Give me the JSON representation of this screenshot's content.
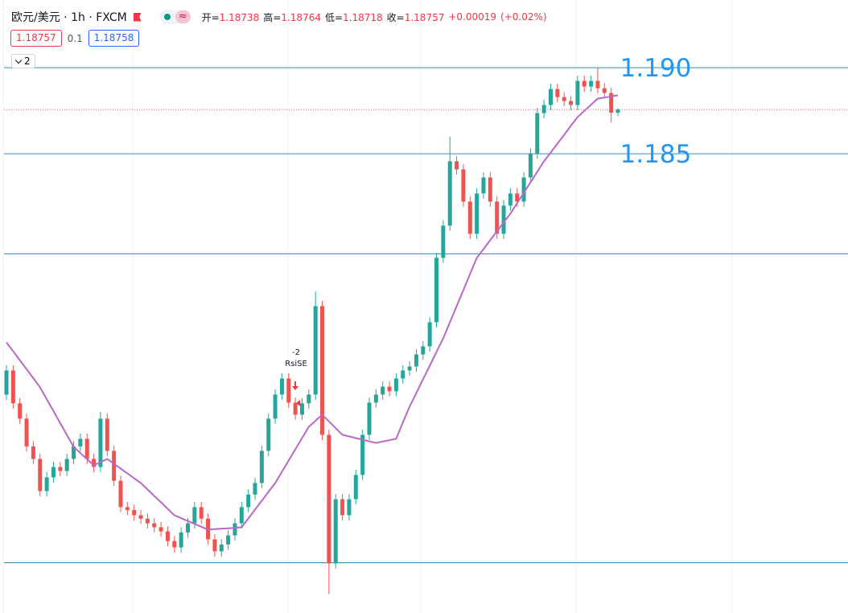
{
  "header": {
    "symbol": "欧元/美元 · 1h · FXCM",
    "badge": "≈",
    "ohlc": [
      {
        "label": "开=",
        "value": 1.18738
      },
      {
        "label": "高=",
        "value": 1.18764
      },
      {
        "label": "低=",
        "value": 1.18718
      },
      {
        "label": "收=",
        "value": 1.18757
      }
    ],
    "change": "+0.00019",
    "change_pct": "(+0.02%)"
  },
  "price_boxes": {
    "bid": 1.18757,
    "spread": 0.1,
    "ask": 1.18758
  },
  "indicator_count": 2,
  "chart_data": {
    "type": "candlestick",
    "up_color": "#26a69a",
    "down_color": "#ef5350",
    "ylim": [
      1.15832,
      1.19393
    ],
    "open": [
      1.171,
      1.17241,
      1.1705,
      1.16961,
      1.168,
      1.16727,
      1.1654,
      1.1662,
      1.1668,
      1.16657,
      1.16727,
      1.168,
      1.16844,
      1.16727,
      1.1668,
      1.16961,
      1.16774,
      1.166,
      1.16447,
      1.1643,
      1.164,
      1.1638,
      1.16353,
      1.1633,
      1.16306,
      1.1625,
      1.16213,
      1.163,
      1.16353,
      1.16447,
      1.1638,
      1.1626,
      1.1619,
      1.1623,
      1.16283,
      1.16353,
      1.16447,
      1.1652,
      1.16587,
      1.16774,
      1.16961,
      1.17101,
      1.17194,
      1.17054,
      1.16984,
      1.1705,
      1.17101,
      1.17615,
      1.16867,
      1.1612,
      1.16493,
      1.164,
      1.16493,
      1.16634,
      1.16867,
      1.17054,
      1.17101,
      1.17147,
      1.1712,
      1.17194,
      1.17241,
      1.17264,
      1.17334,
      1.17381,
      1.17521,
      1.17895,
      1.18082,
      1.18456,
      1.18409,
      1.18222,
      1.18035,
      1.18269,
      1.18362,
      1.18222,
      1.18035,
      1.18199,
      1.18269,
      1.18222,
      1.18362,
      1.18502,
      1.18736,
      1.18783,
      1.18876,
      1.18829,
      1.18806,
      1.18783,
      1.18923,
      1.1889,
      1.18923,
      1.1888,
      1.18853,
      1.18738
    ],
    "high": [
      1.17271,
      1.17271,
      1.1708,
      1.16991,
      1.1683,
      1.16757,
      1.1665,
      1.1671,
      1.1671,
      1.16757,
      1.1683,
      1.16874,
      1.16874,
      1.16757,
      1.17,
      1.16991,
      1.16804,
      1.1663,
      1.16477,
      1.1646,
      1.1643,
      1.1641,
      1.16383,
      1.1636,
      1.16336,
      1.1628,
      1.1633,
      1.16383,
      1.16477,
      1.16477,
      1.1641,
      1.1629,
      1.1626,
      1.16313,
      1.16383,
      1.16477,
      1.1655,
      1.16617,
      1.16804,
      1.16991,
      1.17131,
      1.17224,
      1.17224,
      1.17084,
      1.1708,
      1.17131,
      1.177,
      1.17645,
      1.16897,
      1.16523,
      1.16523,
      1.16523,
      1.16664,
      1.16897,
      1.17084,
      1.17131,
      1.17177,
      1.17177,
      1.17224,
      1.17271,
      1.17294,
      1.17364,
      1.17411,
      1.17551,
      1.17925,
      1.18112,
      1.186,
      1.18486,
      1.18439,
      1.18252,
      1.18299,
      1.18392,
      1.18392,
      1.18252,
      1.18229,
      1.18299,
      1.18299,
      1.18392,
      1.18532,
      1.18766,
      1.18813,
      1.18906,
      1.18906,
      1.18859,
      1.18836,
      1.18953,
      1.18953,
      1.18953,
      1.19,
      1.1891,
      1.18883,
      1.18764
    ],
    "low": [
      1.1707,
      1.1702,
      1.16931,
      1.1677,
      1.16697,
      1.1651,
      1.1651,
      1.1659,
      1.16627,
      1.16627,
      1.16697,
      1.1677,
      1.16697,
      1.1665,
      1.1665,
      1.16744,
      1.1657,
      1.16417,
      1.164,
      1.1637,
      1.1635,
      1.16323,
      1.163,
      1.16276,
      1.1622,
      1.16183,
      1.16183,
      1.1627,
      1.16323,
      1.1635,
      1.1623,
      1.1616,
      1.1616,
      1.162,
      1.16253,
      1.16323,
      1.16417,
      1.1649,
      1.16557,
      1.16744,
      1.16931,
      1.17071,
      1.17024,
      1.16954,
      1.16954,
      1.1702,
      1.17071,
      1.16837,
      1.15942,
      1.1609,
      1.1637,
      1.1637,
      1.16463,
      1.16604,
      1.16837,
      1.17024,
      1.17071,
      1.1709,
      1.1709,
      1.17164,
      1.17211,
      1.17234,
      1.17304,
      1.17351,
      1.17491,
      1.17865,
      1.18052,
      1.18379,
      1.18192,
      1.18005,
      1.18005,
      1.18239,
      1.18192,
      1.18005,
      1.18005,
      1.18169,
      1.18192,
      1.18192,
      1.18332,
      1.18472,
      1.18706,
      1.18753,
      1.18799,
      1.18776,
      1.18753,
      1.18753,
      1.1886,
      1.1886,
      1.1885,
      1.18823,
      1.1868,
      1.18718
    ],
    "close": [
      1.17241,
      1.1705,
      1.16961,
      1.168,
      1.16727,
      1.1654,
      1.1662,
      1.1668,
      1.16657,
      1.16727,
      1.168,
      1.16844,
      1.16727,
      1.1668,
      1.16961,
      1.16774,
      1.166,
      1.16447,
      1.1643,
      1.164,
      1.1638,
      1.16353,
      1.1633,
      1.16306,
      1.1625,
      1.16213,
      1.163,
      1.16353,
      1.16447,
      1.1638,
      1.1626,
      1.1619,
      1.1623,
      1.16283,
      1.16353,
      1.16447,
      1.1652,
      1.16587,
      1.16774,
      1.16961,
      1.17101,
      1.17194,
      1.17054,
      1.16984,
      1.1705,
      1.17101,
      1.17615,
      1.16867,
      1.1612,
      1.16493,
      1.164,
      1.16493,
      1.16634,
      1.16867,
      1.17054,
      1.17101,
      1.17147,
      1.1712,
      1.17194,
      1.17241,
      1.17264,
      1.17334,
      1.17381,
      1.17521,
      1.17895,
      1.18082,
      1.18456,
      1.18409,
      1.18222,
      1.18035,
      1.18269,
      1.18362,
      1.18222,
      1.18035,
      1.18199,
      1.18269,
      1.18222,
      1.18362,
      1.18502,
      1.18736,
      1.18783,
      1.18876,
      1.18829,
      1.18806,
      1.18783,
      1.18923,
      1.1889,
      1.18923,
      1.1888,
      1.18853,
      1.18738,
      1.18757
    ],
    "ma": {
      "color": "#ba68c8",
      "values": [
        1.17404,
        1.17352,
        1.173,
        1.17248,
        1.17196,
        1.17143,
        1.17074,
        1.17005,
        1.16935,
        1.16866,
        1.16797,
        1.16761,
        1.16726,
        1.1669,
        1.16708,
        1.16727,
        1.16699,
        1.16671,
        1.16643,
        1.16615,
        1.16587,
        1.1655,
        1.16512,
        1.16475,
        1.16437,
        1.164,
        1.16383,
        1.16366,
        1.1635,
        1.16333,
        1.16316,
        1.16319,
        1.16322,
        1.16324,
        1.16327,
        1.1633,
        1.16381,
        1.16433,
        1.16484,
        1.16536,
        1.16587,
        1.16652,
        1.16718,
        1.16783,
        1.16849,
        1.16914,
        1.16949,
        1.16984,
        1.16945,
        1.16906,
        1.16867,
        1.16858,
        1.16848,
        1.16839,
        1.16829,
        1.1682,
        1.16828,
        1.16836,
        1.16844,
        1.16938,
        1.17031,
        1.1711,
        1.1719,
        1.17269,
        1.17349,
        1.17428,
        1.17521,
        1.17615,
        1.17708,
        1.17802,
        1.17895,
        1.17946,
        1.17998,
        1.18049,
        1.18101,
        1.18152,
        1.18213,
        1.18274,
        1.18334,
        1.18395,
        1.18456,
        1.18507,
        1.18559,
        1.1861,
        1.18662,
        1.18713,
        1.18749,
        1.18784,
        1.1882,
        1.18826,
        1.18833,
        1.18839
      ]
    },
    "hline_color": "#2a8fbd",
    "hlines": [
      {
        "value": 1.19,
        "label": "1.190"
      },
      {
        "value": 1.185,
        "label": "1.185"
      },
      1.17918,
      1.16124
    ],
    "signal": {
      "count": "-2",
      "label": "RsiSE"
    }
  }
}
